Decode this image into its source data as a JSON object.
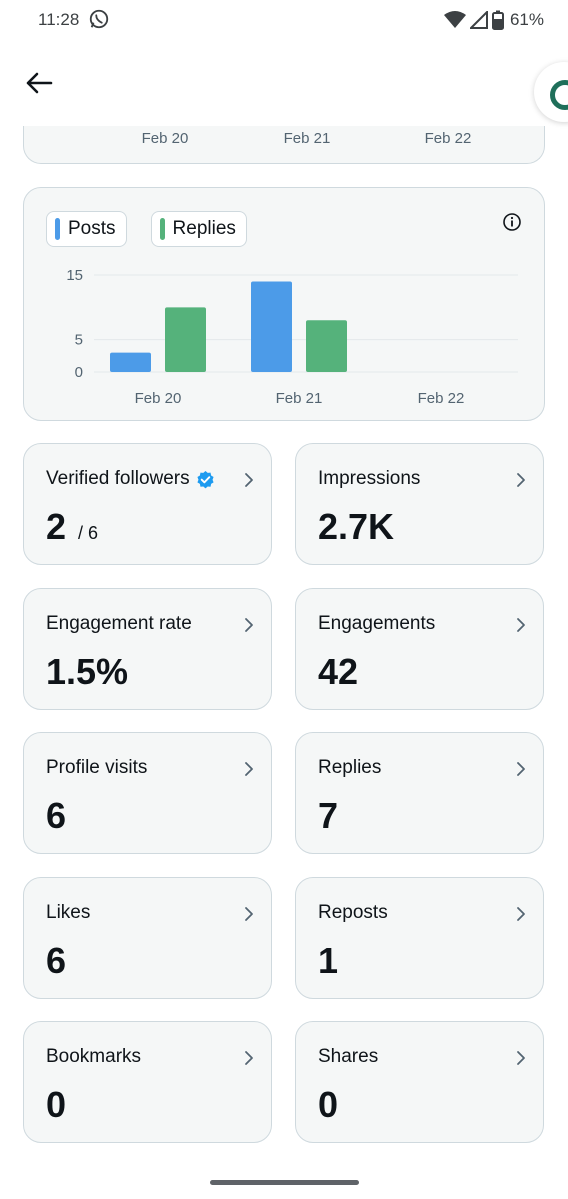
{
  "status_bar": {
    "time": "11:28",
    "battery": "61%"
  },
  "top_bar": {
    "back_icon": "arrow-left-icon",
    "grok_icon": "grok-icon"
  },
  "top_chart": {
    "dates": [
      "Feb 20",
      "Feb 21",
      "Feb 22"
    ]
  },
  "legend": [
    {
      "label": "Posts",
      "color": "#4c9be8"
    },
    {
      "label": "Replies",
      "color": "#55b27b"
    }
  ],
  "chart_data": {
    "type": "bar",
    "categories": [
      "Feb 20",
      "Feb 21",
      "Feb 22"
    ],
    "series": [
      {
        "name": "Posts",
        "values": [
          3,
          14,
          0
        ]
      },
      {
        "name": "Replies",
        "values": [
          10,
          8,
          0
        ]
      }
    ],
    "yticks": [
      "15",
      "5",
      "0"
    ],
    "ylim": [
      0,
      15
    ],
    "grid": true
  },
  "stats": {
    "verified_followers": {
      "label": "Verified followers",
      "value": "2",
      "sub": "/ 6"
    },
    "impressions": {
      "label": "Impressions",
      "value": "2.7K"
    },
    "engagement_rate": {
      "label": "Engagement rate",
      "value": "1.5%"
    },
    "engagements": {
      "label": "Engagements",
      "value": "42"
    },
    "profile_visits": {
      "label": "Profile visits",
      "value": "6"
    },
    "replies": {
      "label": "Replies",
      "value": "7"
    },
    "likes": {
      "label": "Likes",
      "value": "6"
    },
    "reposts": {
      "label": "Reposts",
      "value": "1"
    },
    "bookmarks": {
      "label": "Bookmarks",
      "value": "0"
    },
    "shares": {
      "label": "Shares",
      "value": "0"
    }
  }
}
